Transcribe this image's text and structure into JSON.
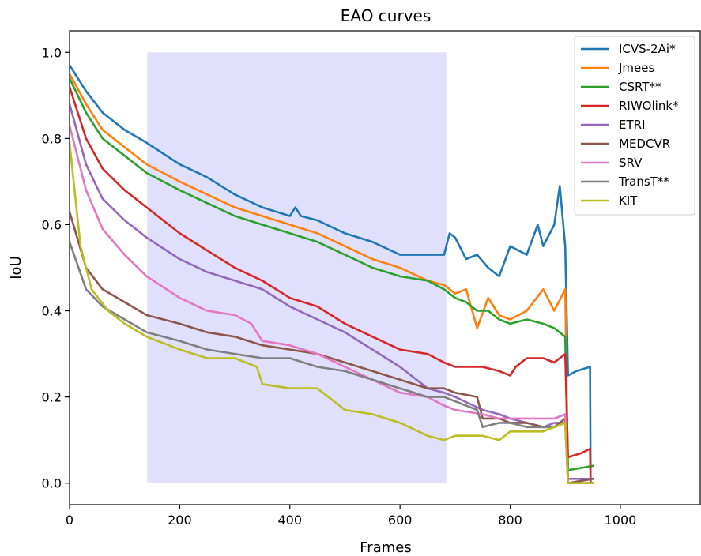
{
  "chart_data": {
    "type": "line",
    "title": "EAO curves",
    "xlabel": "Frames",
    "ylabel": "IoU",
    "xlim": [
      0,
      1145
    ],
    "ylim": [
      -0.05,
      1.05
    ],
    "xticks": [
      0,
      200,
      400,
      600,
      800,
      1000
    ],
    "xtick_labels": [
      "0",
      "200",
      "400",
      "600",
      "800",
      "1000"
    ],
    "yticks": [
      0.0,
      0.2,
      0.4,
      0.6,
      0.8,
      1.0
    ],
    "ytick_labels": [
      "0.0",
      "0.2",
      "0.4",
      "0.6",
      "0.8",
      "1.0"
    ],
    "grid": false,
    "legend_position": "top-right",
    "shaded_interval": {
      "x": [
        141,
        684
      ],
      "y": [
        0,
        1.0
      ],
      "color": "#e0e0fc"
    },
    "series": [
      {
        "name": "ICVS-2Ai*",
        "color": "#1f77b4",
        "points": [
          [
            0,
            0.97
          ],
          [
            30,
            0.91
          ],
          [
            60,
            0.86
          ],
          [
            100,
            0.82
          ],
          [
            140,
            0.79
          ],
          [
            200,
            0.74
          ],
          [
            250,
            0.71
          ],
          [
            300,
            0.67
          ],
          [
            350,
            0.64
          ],
          [
            400,
            0.62
          ],
          [
            410,
            0.64
          ],
          [
            420,
            0.62
          ],
          [
            450,
            0.61
          ],
          [
            500,
            0.58
          ],
          [
            550,
            0.56
          ],
          [
            600,
            0.53
          ],
          [
            650,
            0.53
          ],
          [
            680,
            0.53
          ],
          [
            690,
            0.58
          ],
          [
            700,
            0.57
          ],
          [
            720,
            0.52
          ],
          [
            740,
            0.53
          ],
          [
            760,
            0.5
          ],
          [
            780,
            0.48
          ],
          [
            800,
            0.55
          ],
          [
            830,
            0.53
          ],
          [
            850,
            0.6
          ],
          [
            860,
            0.55
          ],
          [
            880,
            0.6
          ],
          [
            890,
            0.69
          ],
          [
            900,
            0.55
          ],
          [
            905,
            0.25
          ],
          [
            920,
            0.26
          ],
          [
            945,
            0.27
          ],
          [
            946,
            0.0
          ],
          [
            950,
            0.0
          ]
        ]
      },
      {
        "name": "Jmees",
        "color": "#ff7f0e",
        "points": [
          [
            0,
            0.95
          ],
          [
            30,
            0.88
          ],
          [
            60,
            0.82
          ],
          [
            100,
            0.78
          ],
          [
            140,
            0.74
          ],
          [
            200,
            0.7
          ],
          [
            250,
            0.67
          ],
          [
            300,
            0.64
          ],
          [
            350,
            0.62
          ],
          [
            400,
            0.6
          ],
          [
            450,
            0.58
          ],
          [
            500,
            0.55
          ],
          [
            550,
            0.52
          ],
          [
            600,
            0.5
          ],
          [
            650,
            0.47
          ],
          [
            680,
            0.46
          ],
          [
            700,
            0.44
          ],
          [
            720,
            0.45
          ],
          [
            740,
            0.36
          ],
          [
            760,
            0.43
          ],
          [
            780,
            0.39
          ],
          [
            800,
            0.38
          ],
          [
            830,
            0.4
          ],
          [
            860,
            0.45
          ],
          [
            880,
            0.4
          ],
          [
            900,
            0.45
          ],
          [
            905,
            0.0
          ],
          [
            950,
            0.0
          ]
        ]
      },
      {
        "name": "CSRT**",
        "color": "#2ca02c",
        "points": [
          [
            0,
            0.94
          ],
          [
            30,
            0.86
          ],
          [
            60,
            0.8
          ],
          [
            100,
            0.76
          ],
          [
            140,
            0.72
          ],
          [
            200,
            0.68
          ],
          [
            250,
            0.65
          ],
          [
            300,
            0.62
          ],
          [
            350,
            0.6
          ],
          [
            400,
            0.58
          ],
          [
            450,
            0.56
          ],
          [
            500,
            0.53
          ],
          [
            550,
            0.5
          ],
          [
            600,
            0.48
          ],
          [
            650,
            0.47
          ],
          [
            680,
            0.45
          ],
          [
            700,
            0.43
          ],
          [
            720,
            0.42
          ],
          [
            740,
            0.4
          ],
          [
            760,
            0.4
          ],
          [
            780,
            0.38
          ],
          [
            800,
            0.37
          ],
          [
            830,
            0.38
          ],
          [
            860,
            0.37
          ],
          [
            880,
            0.36
          ],
          [
            900,
            0.34
          ],
          [
            905,
            0.03
          ],
          [
            950,
            0.04
          ]
        ]
      },
      {
        "name": "RIWOlink*",
        "color": "#d62728",
        "points": [
          [
            0,
            0.92
          ],
          [
            30,
            0.8
          ],
          [
            60,
            0.73
          ],
          [
            100,
            0.68
          ],
          [
            140,
            0.64
          ],
          [
            200,
            0.58
          ],
          [
            250,
            0.54
          ],
          [
            300,
            0.5
          ],
          [
            350,
            0.47
          ],
          [
            400,
            0.43
          ],
          [
            450,
            0.41
          ],
          [
            500,
            0.37
          ],
          [
            550,
            0.34
          ],
          [
            600,
            0.31
          ],
          [
            650,
            0.3
          ],
          [
            680,
            0.28
          ],
          [
            700,
            0.27
          ],
          [
            750,
            0.27
          ],
          [
            780,
            0.26
          ],
          [
            800,
            0.25
          ],
          [
            810,
            0.27
          ],
          [
            830,
            0.29
          ],
          [
            860,
            0.29
          ],
          [
            880,
            0.28
          ],
          [
            900,
            0.3
          ],
          [
            905,
            0.06
          ],
          [
            930,
            0.07
          ],
          [
            945,
            0.08
          ],
          [
            946,
            0.0
          ],
          [
            950,
            0.0
          ]
        ]
      },
      {
        "name": "ETRI",
        "color": "#9467bd",
        "points": [
          [
            0,
            0.88
          ],
          [
            30,
            0.74
          ],
          [
            60,
            0.66
          ],
          [
            100,
            0.61
          ],
          [
            140,
            0.57
          ],
          [
            200,
            0.52
          ],
          [
            250,
            0.49
          ],
          [
            300,
            0.47
          ],
          [
            350,
            0.45
          ],
          [
            400,
            0.41
          ],
          [
            450,
            0.38
          ],
          [
            500,
            0.35
          ],
          [
            550,
            0.31
          ],
          [
            600,
            0.27
          ],
          [
            650,
            0.22
          ],
          [
            680,
            0.21
          ],
          [
            700,
            0.2
          ],
          [
            750,
            0.17
          ],
          [
            780,
            0.16
          ],
          [
            800,
            0.15
          ],
          [
            830,
            0.14
          ],
          [
            860,
            0.13
          ],
          [
            880,
            0.14
          ],
          [
            900,
            0.14
          ],
          [
            905,
            0.01
          ],
          [
            950,
            0.01
          ]
        ]
      },
      {
        "name": "MEDCVR",
        "color": "#8c564b",
        "points": [
          [
            0,
            0.63
          ],
          [
            30,
            0.5
          ],
          [
            60,
            0.45
          ],
          [
            100,
            0.42
          ],
          [
            140,
            0.39
          ],
          [
            200,
            0.37
          ],
          [
            250,
            0.35
          ],
          [
            300,
            0.34
          ],
          [
            350,
            0.32
          ],
          [
            400,
            0.31
          ],
          [
            450,
            0.3
          ],
          [
            500,
            0.28
          ],
          [
            550,
            0.26
          ],
          [
            600,
            0.24
          ],
          [
            650,
            0.22
          ],
          [
            680,
            0.22
          ],
          [
            700,
            0.21
          ],
          [
            740,
            0.2
          ],
          [
            750,
            0.15
          ],
          [
            780,
            0.15
          ],
          [
            800,
            0.14
          ],
          [
            830,
            0.14
          ],
          [
            860,
            0.13
          ],
          [
            880,
            0.13
          ],
          [
            900,
            0.15
          ],
          [
            905,
            0.0
          ],
          [
            950,
            0.01
          ]
        ]
      },
      {
        "name": "SRV",
        "color": "#e377c2",
        "points": [
          [
            0,
            0.83
          ],
          [
            30,
            0.68
          ],
          [
            60,
            0.59
          ],
          [
            100,
            0.53
          ],
          [
            140,
            0.48
          ],
          [
            200,
            0.43
          ],
          [
            250,
            0.4
          ],
          [
            300,
            0.39
          ],
          [
            330,
            0.37
          ],
          [
            350,
            0.33
          ],
          [
            400,
            0.32
          ],
          [
            450,
            0.3
          ],
          [
            500,
            0.27
          ],
          [
            550,
            0.24
          ],
          [
            600,
            0.21
          ],
          [
            650,
            0.2
          ],
          [
            680,
            0.18
          ],
          [
            700,
            0.17
          ],
          [
            750,
            0.16
          ],
          [
            780,
            0.15
          ],
          [
            800,
            0.15
          ],
          [
            830,
            0.15
          ],
          [
            860,
            0.15
          ],
          [
            880,
            0.15
          ],
          [
            900,
            0.16
          ],
          [
            905,
            0.0
          ],
          [
            950,
            0.0
          ]
        ]
      },
      {
        "name": "TransT**",
        "color": "#7f7f7f",
        "points": [
          [
            0,
            0.56
          ],
          [
            30,
            0.45
          ],
          [
            60,
            0.41
          ],
          [
            100,
            0.38
          ],
          [
            140,
            0.35
          ],
          [
            200,
            0.33
          ],
          [
            250,
            0.31
          ],
          [
            300,
            0.3
          ],
          [
            350,
            0.29
          ],
          [
            400,
            0.29
          ],
          [
            450,
            0.27
          ],
          [
            500,
            0.26
          ],
          [
            550,
            0.24
          ],
          [
            600,
            0.22
          ],
          [
            650,
            0.2
          ],
          [
            680,
            0.2
          ],
          [
            700,
            0.19
          ],
          [
            740,
            0.17
          ],
          [
            750,
            0.13
          ],
          [
            780,
            0.14
          ],
          [
            800,
            0.14
          ],
          [
            830,
            0.13
          ],
          [
            860,
            0.13
          ],
          [
            880,
            0.13
          ],
          [
            900,
            0.14
          ],
          [
            905,
            0.0
          ],
          [
            950,
            0.0
          ]
        ]
      },
      {
        "name": "KIT",
        "color": "#bcbd22",
        "points": [
          [
            0,
            0.79
          ],
          [
            20,
            0.55
          ],
          [
            40,
            0.45
          ],
          [
            70,
            0.4
          ],
          [
            100,
            0.37
          ],
          [
            140,
            0.34
          ],
          [
            200,
            0.31
          ],
          [
            250,
            0.29
          ],
          [
            300,
            0.29
          ],
          [
            340,
            0.27
          ],
          [
            350,
            0.23
          ],
          [
            400,
            0.22
          ],
          [
            450,
            0.22
          ],
          [
            500,
            0.17
          ],
          [
            550,
            0.16
          ],
          [
            600,
            0.14
          ],
          [
            650,
            0.11
          ],
          [
            680,
            0.1
          ],
          [
            700,
            0.11
          ],
          [
            750,
            0.11
          ],
          [
            780,
            0.1
          ],
          [
            800,
            0.12
          ],
          [
            830,
            0.12
          ],
          [
            860,
            0.12
          ],
          [
            880,
            0.13
          ],
          [
            900,
            0.14
          ],
          [
            905,
            0.0
          ],
          [
            950,
            0.0
          ]
        ]
      }
    ]
  }
}
